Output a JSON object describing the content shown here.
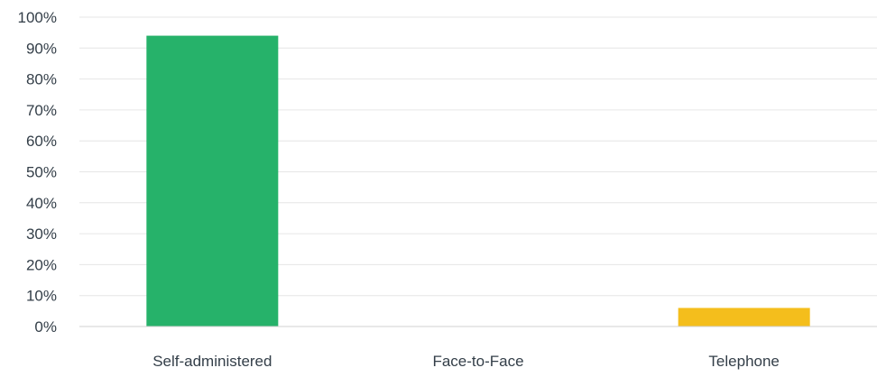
{
  "chart_data": {
    "type": "bar",
    "title": "",
    "xlabel": "",
    "ylabel": "",
    "categories": [
      "Self-administered",
      "Face-to-Face",
      "Telephone"
    ],
    "values": [
      94,
      0,
      6
    ],
    "colors": [
      "#26b26a",
      "#26b26a",
      "#f4be1c"
    ],
    "ylim": [
      0,
      100
    ],
    "yticks": [
      0,
      10,
      20,
      30,
      40,
      50,
      60,
      70,
      80,
      90,
      100
    ],
    "ytick_labels": [
      "0%",
      "10%",
      "20%",
      "30%",
      "40%",
      "50%",
      "60%",
      "70%",
      "80%",
      "90%",
      "100%"
    ],
    "grid": true,
    "legend": "none"
  }
}
